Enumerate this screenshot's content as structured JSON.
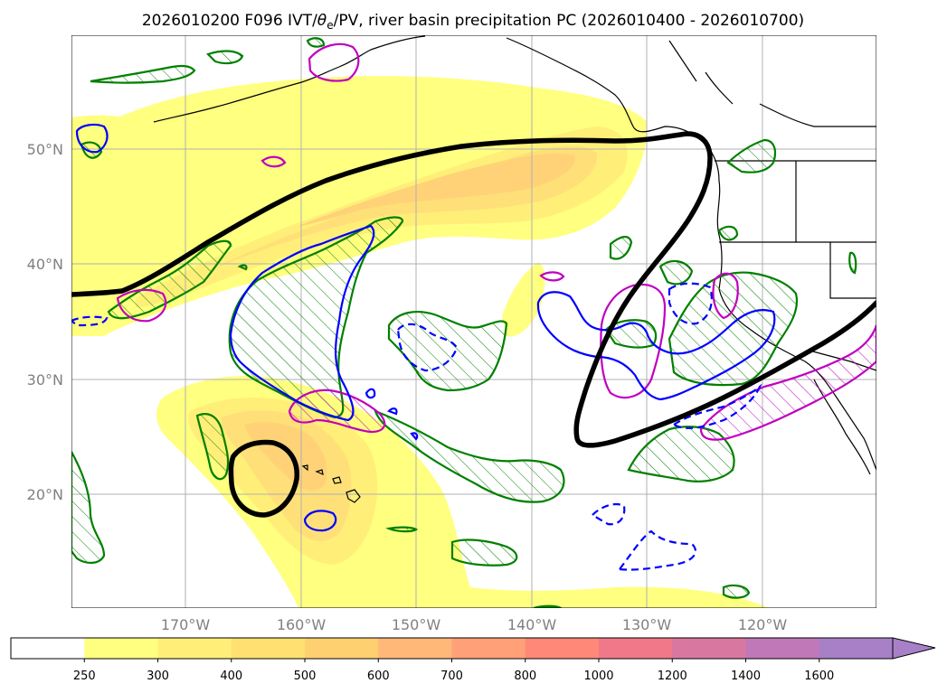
{
  "title": {
    "prefix": "2026010200 F096 IVT/",
    "theta": "θ",
    "sub": "e",
    "suffix": "/PV, river basin precipitation PC (2026010400 - 2026010700)"
  },
  "map": {
    "lat_labels": [
      "50°N",
      "40°N",
      "30°N",
      "20°N"
    ],
    "lon_labels": [
      "170°W",
      "160°W",
      "150°W",
      "140°W",
      "130°W",
      "120°W"
    ],
    "lat_values": [
      50,
      40,
      30,
      20
    ],
    "lon_values": [
      -170,
      -160,
      -150,
      -140,
      -130,
      -120
    ],
    "extent": {
      "lon_min": -180,
      "lon_max": -110,
      "lat_min": 10,
      "lat_max": 60
    },
    "gridlines": true,
    "projection": "PlateCarree",
    "coastline_color": "#000000"
  },
  "colorbar": {
    "levels": [
      "250",
      "300",
      "400",
      "500",
      "600",
      "700",
      "800",
      "1000",
      "1200",
      "1400",
      "1600"
    ],
    "colors": [
      "#ffffff",
      "#ffff80",
      "#ffef78",
      "#ffe070",
      "#ffd070",
      "#ffb878",
      "#ffa078",
      "#ff8878",
      "#f07888",
      "#d878a0",
      "#c078b8",
      "#a880c8"
    ],
    "extend": "max",
    "units_label": ""
  },
  "ivt_colors": {
    "250": "#ffff80",
    "300": "#ffef78",
    "400": "#ffe078",
    "500": "#ffd278"
  },
  "contour_colors": {
    "pv": "#000000",
    "green": "#008000",
    "blue": "#0000ff",
    "magenta": "#c000c0"
  }
}
